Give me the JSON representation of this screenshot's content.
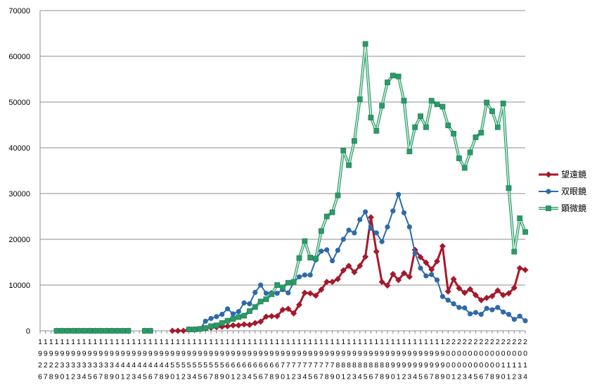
{
  "chart_data": {
    "type": "line",
    "categories": [
      "1926",
      "1927",
      "1928",
      "1929",
      "1930",
      "1931",
      "1932",
      "1933",
      "1934",
      "1935",
      "1936",
      "1937",
      "1938",
      "1939",
      "1940",
      "1941",
      "1942",
      "1943",
      "1944",
      "1945",
      "1946",
      "1947",
      "1948",
      "1949",
      "1950",
      "1951",
      "1952",
      "1953",
      "1954",
      "1955",
      "1956",
      "1957",
      "1958",
      "1959",
      "1960",
      "1961",
      "1962",
      "1963",
      "1964",
      "1965",
      "1966",
      "1967",
      "1968",
      "1969",
      "1970",
      "1971",
      "1972",
      "1973",
      "1974",
      "1975",
      "1976",
      "1977",
      "1978",
      "1979",
      "1980",
      "1981",
      "1982",
      "1983",
      "1984",
      "1985",
      "1986",
      "1987",
      "1988",
      "1989",
      "1990",
      "1991",
      "1992",
      "1993",
      "1994",
      "1995",
      "1996",
      "1997",
      "1998",
      "1999",
      "2000",
      "2001",
      "2002",
      "2003",
      "2004",
      "2005",
      "2006",
      "2007",
      "2008",
      "2009",
      "2010",
      "2011",
      "2012",
      "2013",
      "2014"
    ],
    "series": [
      {
        "name": "望遠鏡",
        "color": "#a31a2c",
        "marker": "diamond",
        "values": [
          null,
          null,
          null,
          0,
          0,
          0,
          0,
          0,
          0,
          0,
          0,
          0,
          0,
          0,
          0,
          0,
          0,
          null,
          null,
          0,
          0,
          null,
          null,
          null,
          0,
          0,
          0,
          300,
          300,
          400,
          500,
          700,
          800,
          900,
          1000,
          1200,
          1200,
          1400,
          1300,
          1700,
          2000,
          3100,
          3200,
          3200,
          4600,
          4800,
          3800,
          5700,
          8300,
          8200,
          7700,
          9000,
          10700,
          10700,
          11300,
          13200,
          14200,
          12800,
          14200,
          16200,
          24800,
          17300,
          10700,
          9900,
          12400,
          11100,
          12600,
          11800,
          17700,
          16100,
          14900,
          13400,
          15200,
          18500,
          8600,
          11300,
          9300,
          8300,
          9100,
          7800,
          6700,
          7200,
          7600,
          8800,
          7800,
          8200,
          9400,
          13700,
          13300
        ]
      },
      {
        "name": "双眼鏡",
        "color": "#2e6aa8",
        "marker": "circle",
        "values": [
          null,
          null,
          null,
          0,
          0,
          0,
          0,
          0,
          0,
          0,
          0,
          0,
          0,
          0,
          0,
          0,
          0,
          null,
          null,
          0,
          0,
          null,
          null,
          null,
          null,
          null,
          null,
          300,
          300,
          400,
          2100,
          2700,
          3100,
          3600,
          4800,
          3700,
          4200,
          6100,
          5900,
          8400,
          10000,
          8200,
          8300,
          8200,
          9000,
          8300,
          10600,
          11800,
          12200,
          12200,
          15500,
          17400,
          17700,
          15300,
          17600,
          20000,
          22000,
          21400,
          24300,
          26000,
          22400,
          21400,
          19500,
          22700,
          26200,
          29800,
          25800,
          22700,
          17000,
          13700,
          12000,
          12300,
          11100,
          7500,
          6700,
          5900,
          5100,
          5000,
          3700,
          4000,
          3600,
          4900,
          4600,
          5100,
          4100,
          3600,
          2500,
          3200,
          2200
        ]
      },
      {
        "name": "顕微鏡",
        "color": "#2a9a68",
        "marker": "square",
        "values": [
          null,
          null,
          null,
          0,
          0,
          0,
          0,
          0,
          0,
          0,
          0,
          0,
          0,
          0,
          0,
          0,
          0,
          null,
          null,
          0,
          0,
          null,
          null,
          null,
          null,
          null,
          null,
          300,
          300,
          400,
          600,
          1000,
          1200,
          1700,
          2200,
          2600,
          3000,
          3300,
          4300,
          5200,
          6400,
          6900,
          8000,
          10000,
          9500,
          10500,
          10700,
          15900,
          19600,
          16000,
          15800,
          21800,
          25000,
          25900,
          29600,
          39400,
          36200,
          41500,
          50600,
          62700,
          46600,
          43700,
          49200,
          54300,
          55800,
          55600,
          50300,
          39200,
          44500,
          46900,
          44500,
          50300,
          49500,
          49000,
          44900,
          43100,
          37700,
          35600,
          39000,
          42300,
          43300,
          49900,
          48000,
          44500,
          49700,
          31200,
          17300,
          24600,
          21600
        ]
      }
    ],
    "ylim": [
      0,
      70000
    ],
    "yticks": [
      0,
      10000,
      20000,
      30000,
      40000,
      50000,
      60000,
      70000
    ],
    "grid": true,
    "legend": "right"
  }
}
